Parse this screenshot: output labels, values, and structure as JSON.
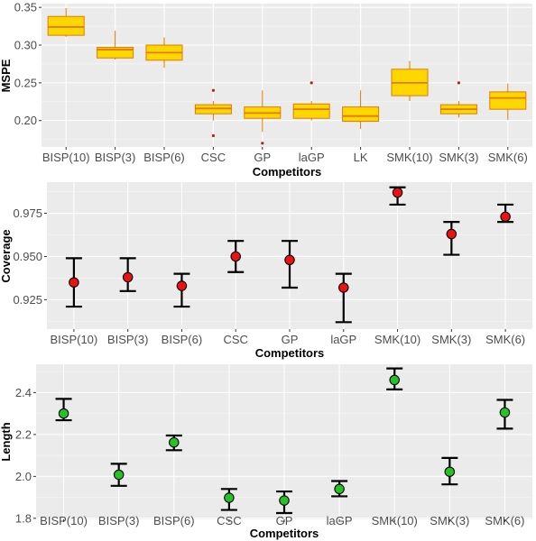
{
  "chart_data": [
    {
      "type": "box",
      "ylabel": "MSPE",
      "xlabel": "Competitors",
      "ylim": [
        0.165,
        0.355
      ],
      "yticks": [
        0.2,
        0.25,
        0.3,
        0.35
      ],
      "ytick_labels": [
        "0.20",
        "0.25",
        "0.30",
        "0.35"
      ],
      "categories": [
        "BISP(10)",
        "BISP(3)",
        "BISP(6)",
        "CSC",
        "GP",
        "laGP",
        "LK",
        "SMK(10)",
        "SMK(3)",
        "SMK(6)"
      ],
      "boxes": [
        {
          "min": 0.311,
          "q1": 0.313,
          "median": 0.324,
          "q3": 0.338,
          "max": 0.349,
          "outliers": []
        },
        {
          "min": 0.281,
          "q1": 0.283,
          "median": 0.294,
          "q3": 0.297,
          "max": 0.319,
          "outliers": []
        },
        {
          "min": 0.27,
          "q1": 0.28,
          "median": 0.29,
          "q3": 0.3,
          "max": 0.31,
          "outliers": []
        },
        {
          "min": 0.2,
          "q1": 0.209,
          "median": 0.216,
          "q3": 0.221,
          "max": 0.226,
          "outliers": [
            0.24,
            0.18
          ]
        },
        {
          "min": 0.185,
          "q1": 0.203,
          "median": 0.21,
          "q3": 0.218,
          "max": 0.24,
          "outliers": [
            0.17
          ]
        },
        {
          "min": 0.2,
          "q1": 0.203,
          "median": 0.215,
          "q3": 0.222,
          "max": 0.226,
          "outliers": [
            0.25
          ]
        },
        {
          "min": 0.189,
          "q1": 0.199,
          "median": 0.206,
          "q3": 0.218,
          "max": 0.24,
          "outliers": []
        },
        {
          "min": 0.226,
          "q1": 0.233,
          "median": 0.25,
          "q3": 0.268,
          "max": 0.279,
          "outliers": []
        },
        {
          "min": 0.204,
          "q1": 0.209,
          "median": 0.215,
          "q3": 0.221,
          "max": 0.226,
          "outliers": [
            0.25
          ]
        },
        {
          "min": 0.201,
          "q1": 0.215,
          "median": 0.23,
          "q3": 0.238,
          "max": 0.249,
          "outliers": []
        }
      ],
      "colors": {
        "fill": "#ffd700",
        "stroke": "#e07a00",
        "outlier": "#b22222"
      }
    },
    {
      "type": "errorbar",
      "ylabel": "Coverage",
      "xlabel": "Competitors",
      "ylim": [
        0.908,
        0.993
      ],
      "yticks": [
        0.925,
        0.95,
        0.975
      ],
      "ytick_labels": [
        "0.925",
        "0.950",
        "0.975"
      ],
      "categories": [
        "BISP(10)",
        "BISP(3)",
        "BISP(6)",
        "CSC",
        "GP",
        "laGP",
        "SMK(10)",
        "SMK(3)",
        "SMK(6)"
      ],
      "points": [
        {
          "y": 0.935,
          "lo": 0.921,
          "hi": 0.949
        },
        {
          "y": 0.938,
          "lo": 0.93,
          "hi": 0.949
        },
        {
          "y": 0.933,
          "lo": 0.921,
          "hi": 0.94
        },
        {
          "y": 0.95,
          "lo": 0.941,
          "hi": 0.959
        },
        {
          "y": 0.948,
          "lo": 0.932,
          "hi": 0.959
        },
        {
          "y": 0.932,
          "lo": 0.912,
          "hi": 0.94
        },
        {
          "y": 0.987,
          "lo": 0.98,
          "hi": 0.99
        },
        {
          "y": 0.963,
          "lo": 0.951,
          "hi": 0.97
        },
        {
          "y": 0.973,
          "lo": 0.97,
          "hi": 0.98
        }
      ],
      "colors": {
        "point": "#ee1111"
      }
    },
    {
      "type": "errorbar",
      "ylabel": "Length",
      "xlabel": "Competitors",
      "ylim": [
        1.795,
        2.535
      ],
      "yticks": [
        1.8,
        2.0,
        2.2,
        2.4
      ],
      "ytick_labels": [
        "1.8",
        "2.0",
        "2.2",
        "2.4"
      ],
      "categories": [
        "BISP(10)",
        "BISP(3)",
        "BISP(6)",
        "CSC",
        "GP",
        "laGP",
        "SMK(10)",
        "SMK(3)",
        "SMK(6)"
      ],
      "points": [
        {
          "y": 2.3,
          "lo": 2.268,
          "hi": 2.37
        },
        {
          "y": 2.008,
          "lo": 1.955,
          "hi": 2.06
        },
        {
          "y": 2.162,
          "lo": 2.125,
          "hi": 2.195
        },
        {
          "y": 1.898,
          "lo": 1.84,
          "hi": 1.94
        },
        {
          "y": 1.885,
          "lo": 1.825,
          "hi": 1.928
        },
        {
          "y": 1.94,
          "lo": 1.905,
          "hi": 1.978
        },
        {
          "y": 2.46,
          "lo": 2.415,
          "hi": 2.515
        },
        {
          "y": 2.022,
          "lo": 1.962,
          "hi": 2.088
        },
        {
          "y": 2.305,
          "lo": 2.228,
          "hi": 2.365
        }
      ],
      "colors": {
        "point": "#22c422"
      }
    }
  ]
}
